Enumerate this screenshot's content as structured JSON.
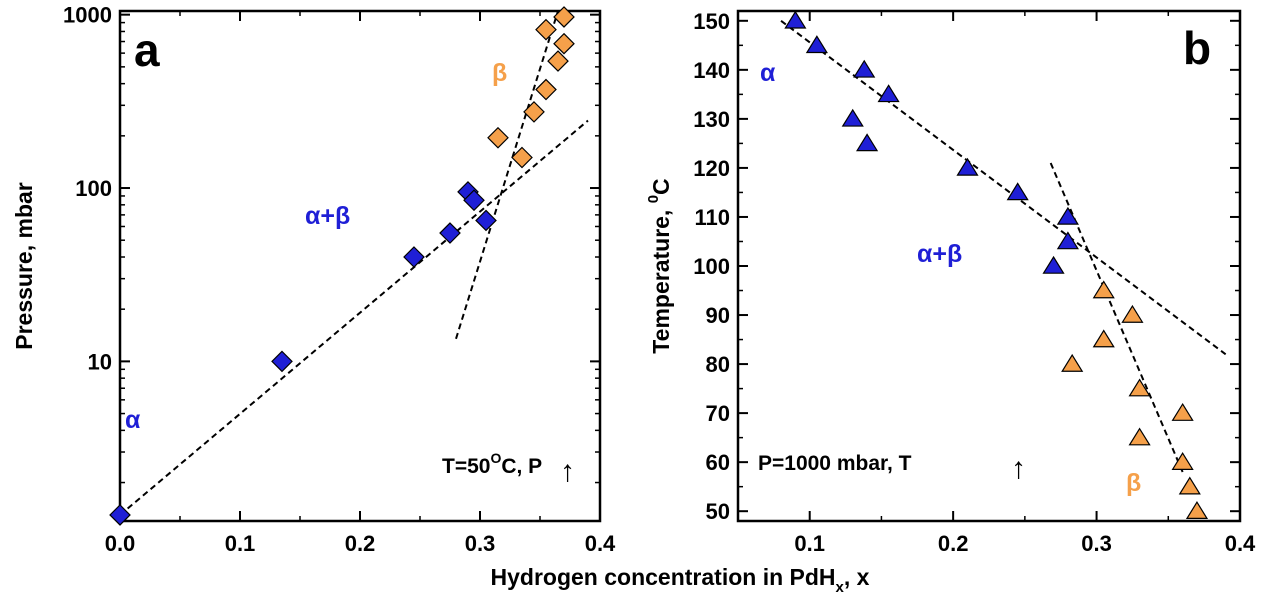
{
  "shared_xlabel": "Hydrogen concentration in PdH",
  "shared_xlabel_sub": "x",
  "shared_xlabel_tail": ", x",
  "colors": {
    "alpha": "#1f1fd6",
    "beta": "#f5a04a",
    "axis": "#000000"
  },
  "chart_data": [
    {
      "type": "scatter",
      "panel_label": "a",
      "ylabel": "Pressure, mbar",
      "yscale": "log",
      "xlim": [
        0.0,
        0.4
      ],
      "ylim": [
        1.2,
        1050
      ],
      "xticks": [
        "0.0",
        "0.1",
        "0.2",
        "0.3",
        "0.4"
      ],
      "yticks": [
        "10",
        "100",
        "1000"
      ],
      "marker": "diamond",
      "condition": {
        "prefix": "T=50",
        "sup": "O",
        "suffix": "C, P",
        "arrow": "↑"
      },
      "phase_labels": {
        "alpha": "α",
        "alpha_beta": "α+β",
        "beta": "β"
      },
      "series": [
        {
          "phase": "alpha",
          "points": [
            [
              0.0,
              1.3
            ],
            [
              0.135,
              10
            ],
            [
              0.245,
              40
            ],
            [
              0.275,
              55
            ],
            [
              0.29,
              95
            ],
            [
              0.295,
              85
            ],
            [
              0.305,
              65
            ]
          ]
        },
        {
          "phase": "beta",
          "points": [
            [
              0.315,
              195
            ],
            [
              0.335,
              150
            ],
            [
              0.345,
              275
            ],
            [
              0.355,
              370
            ],
            [
              0.355,
              820
            ],
            [
              0.365,
              540
            ],
            [
              0.37,
              680
            ],
            [
              0.37,
              970
            ]
          ]
        }
      ],
      "fit_lines": [
        [
          [
            0.0,
            1.3
          ],
          [
            0.39,
            245
          ]
        ],
        [
          [
            0.28,
            13.5
          ],
          [
            0.365,
            1050
          ]
        ]
      ]
    },
    {
      "type": "scatter",
      "panel_label": "b",
      "ylabel": "Temperature, ",
      "ylabel_sup": "0",
      "ylabel_tail": "C",
      "xlim": [
        0.05,
        0.4
      ],
      "ylim": [
        48,
        152
      ],
      "xticks": [
        "0.1",
        "0.2",
        "0.3",
        "0.4"
      ],
      "yticks": [
        "50",
        "60",
        "70",
        "80",
        "90",
        "100",
        "110",
        "120",
        "130",
        "140",
        "150"
      ],
      "marker": "triangle",
      "condition": {
        "prefix": "P=1000 mbar, T",
        "arrow": "↑"
      },
      "phase_labels": {
        "alpha": "α",
        "alpha_beta": "α+β",
        "beta": "β"
      },
      "series": [
        {
          "phase": "alpha",
          "points": [
            [
              0.09,
              150
            ],
            [
              0.105,
              145
            ],
            [
              0.138,
              140
            ],
            [
              0.155,
              135
            ],
            [
              0.13,
              130
            ],
            [
              0.14,
              125
            ],
            [
              0.21,
              120
            ],
            [
              0.245,
              115
            ],
            [
              0.28,
              110
            ],
            [
              0.28,
              105
            ],
            [
              0.27,
              100
            ]
          ]
        },
        {
          "phase": "beta",
          "points": [
            [
              0.305,
              95
            ],
            [
              0.325,
              90
            ],
            [
              0.305,
              85
            ],
            [
              0.283,
              80
            ],
            [
              0.33,
              75
            ],
            [
              0.36,
              70
            ],
            [
              0.33,
              65
            ],
            [
              0.36,
              60
            ],
            [
              0.365,
              55
            ],
            [
              0.37,
              50
            ]
          ]
        }
      ],
      "fit_lines": [
        [
          [
            0.08,
            150
          ],
          [
            0.39,
            82
          ]
        ],
        [
          [
            0.268,
            121
          ],
          [
            0.36,
            58
          ]
        ]
      ]
    }
  ]
}
